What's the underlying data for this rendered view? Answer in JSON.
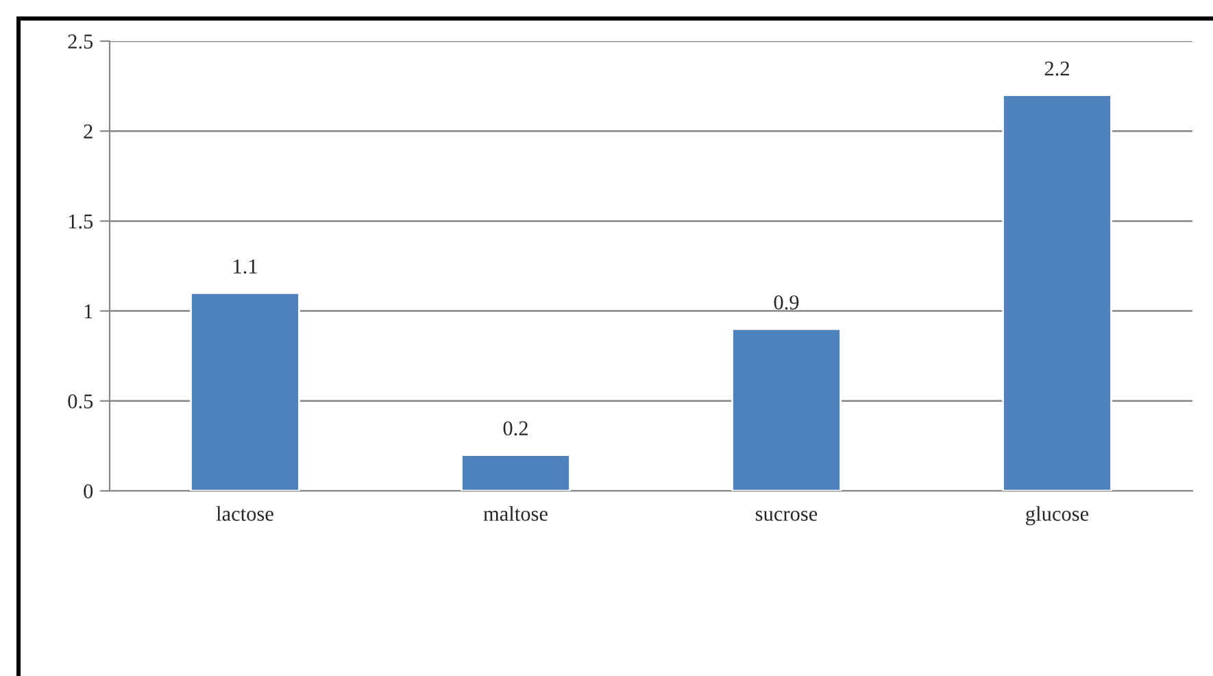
{
  "chart_data": {
    "type": "bar",
    "categories": [
      "lactose",
      "maltose",
      "sucrose",
      "glucose"
    ],
    "values": [
      1.1,
      0.2,
      0.9,
      2.2
    ],
    "color": "#4f81bd",
    "ylim": [
      0,
      2.5
    ],
    "yticks": [
      0,
      0.5,
      1,
      1.5,
      2,
      2.5
    ],
    "grid": "y",
    "data_labels": true
  }
}
